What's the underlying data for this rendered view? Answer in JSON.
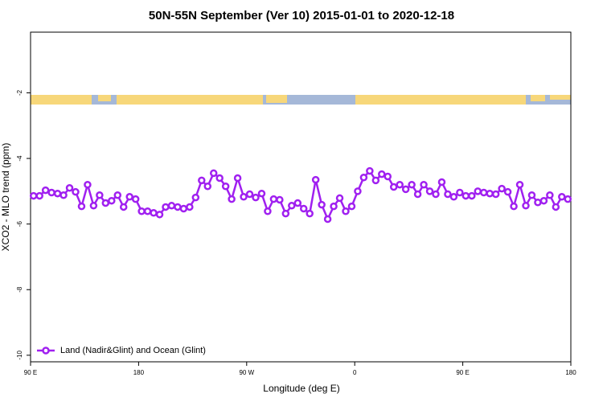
{
  "chart_data": {
    "type": "line",
    "title": "50N-55N September (Ver 10)   2015-01-01 to 2020-12-18",
    "x_label": "Longitude (deg E)",
    "y_label": "XCO2 - MLO trend (ppm)",
    "xlim": [
      90,
      540
    ],
    "xticks": [
      {
        "value": 90,
        "label": "90 E"
      },
      180,
      {
        "value": 270,
        "label": "90 W"
      },
      {
        "value": 360,
        "label": "0"
      },
      {
        "value": 450,
        "label": "90 E"
      },
      {
        "value": 540,
        "label": "180"
      }
    ],
    "ylim": [
      -10.2,
      -0.15
    ],
    "yticks": [
      -2,
      -4,
      -6,
      -8,
      -10
    ],
    "legend": "bottom-left",
    "x": [
      92.5,
      97.5,
      102.5,
      107.5,
      112.5,
      117.5,
      122.5,
      127.5,
      132.5,
      137.5,
      142.5,
      147.5,
      152.5,
      157.5,
      162.5,
      167.5,
      172.5,
      177.5,
      182.5,
      187.5,
      192.5,
      197.5,
      202.5,
      207.5,
      212.5,
      217.5,
      222.5,
      227.5,
      232.5,
      237.5,
      242.5,
      247.5,
      252.5,
      257.5,
      262.5,
      267.5,
      272.5,
      277.5,
      282.5,
      287.5,
      292.5,
      297.5,
      302.5,
      307.5,
      312.5,
      317.5,
      322.5,
      327.5,
      332.5,
      337.5,
      342.5,
      347.5,
      352.5,
      357.5,
      362.5,
      367.5,
      372.5,
      377.5,
      382.5,
      387.5,
      392.5,
      397.5,
      402.5,
      407.5,
      412.5,
      417.5,
      422.5,
      427.5,
      432.5,
      437.5,
      442.5,
      447.5,
      452.5,
      457.5,
      462.5,
      467.5,
      472.5,
      477.5,
      482.5,
      487.5,
      492.5,
      497.5,
      502.5,
      507.5,
      512.5,
      517.5,
      522.5,
      527.5,
      532.5,
      537.5
    ],
    "series": [
      {
        "name": "Land (Nadir&Glint) and Ocean (Glint)",
        "color": "#a020f0",
        "values": [
          -5.14,
          -5.14,
          -4.97,
          -5.04,
          -5.07,
          -5.12,
          -4.9,
          -5.02,
          -5.46,
          -4.8,
          -5.44,
          -5.12,
          -5.36,
          -5.29,
          -5.12,
          -5.48,
          -5.17,
          -5.24,
          -5.61,
          -5.61,
          -5.66,
          -5.71,
          -5.48,
          -5.44,
          -5.48,
          -5.53,
          -5.48,
          -5.19,
          -4.67,
          -4.85,
          -4.45,
          -4.6,
          -4.85,
          -5.24,
          -4.6,
          -5.17,
          -5.09,
          -5.19,
          -5.07,
          -5.61,
          -5.24,
          -5.26,
          -5.68,
          -5.44,
          -5.36,
          -5.53,
          -5.68,
          -4.65,
          -5.41,
          -5.85,
          -5.46,
          -5.21,
          -5.61,
          -5.46,
          -5.0,
          -4.58,
          -4.38,
          -4.67,
          -4.48,
          -4.55,
          -4.87,
          -4.8,
          -4.94,
          -4.8,
          -5.09,
          -4.8,
          -5.0,
          -5.09,
          -4.72,
          -5.09,
          -5.17,
          -5.04,
          -5.14,
          -5.14,
          -5.0,
          -5.04,
          -5.07,
          -5.09,
          -4.92,
          -5.02,
          -5.46,
          -4.8,
          -5.44,
          -5.12,
          -5.34,
          -5.29,
          -5.12,
          -5.48,
          -5.17,
          -5.24
        ]
      }
    ]
  }
}
